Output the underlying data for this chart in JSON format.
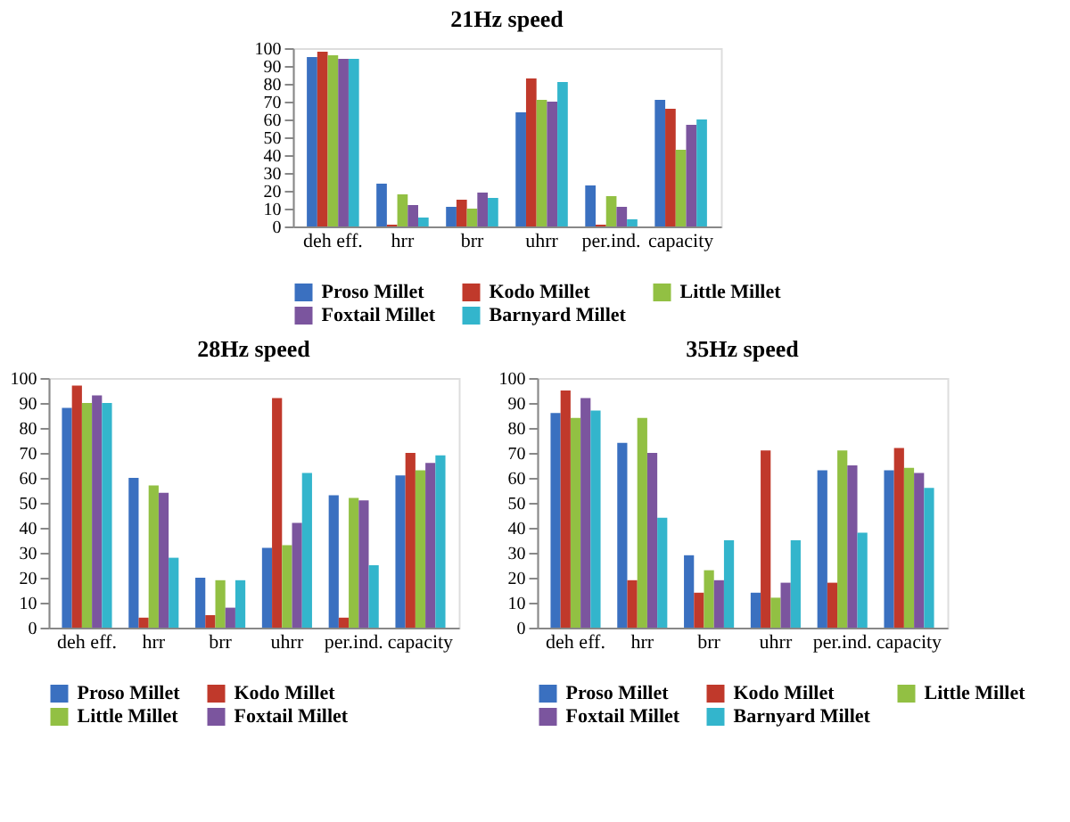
{
  "chart_data": [
    {
      "type": "bar",
      "title": "21Hz speed",
      "categories": [
        "deh eff.",
        "hrr",
        "brr",
        "uhrr",
        "per.ind.",
        "capacity"
      ],
      "ylim": [
        0,
        100
      ],
      "yticks": [
        0,
        10,
        20,
        30,
        40,
        50,
        60,
        70,
        80,
        90,
        100
      ],
      "grid": false,
      "legend": "bottom",
      "series": [
        {
          "name": "Proso Millet",
          "color": "#3a70c0",
          "values": [
            95,
            24,
            11,
            64,
            23,
            71
          ]
        },
        {
          "name": "Kodo Millet",
          "color": "#c0392b",
          "values": [
            98,
            1,
            15,
            83,
            1,
            66
          ]
        },
        {
          "name": "Little Millet",
          "color": "#92c043",
          "values": [
            96,
            18,
            10,
            71,
            17,
            43
          ]
        },
        {
          "name": "Foxtail Millet",
          "color": "#7b559e",
          "values": [
            94,
            12,
            19,
            70,
            11,
            57
          ]
        },
        {
          "name": "Barnyard Millet",
          "color": "#33b5cc",
          "values": [
            94,
            5,
            16,
            81,
            4,
            60
          ]
        }
      ]
    },
    {
      "type": "bar",
      "title": "28Hz speed",
      "categories": [
        "deh eff.",
        "hrr",
        "brr",
        "uhrr",
        "per.ind.",
        "capacity"
      ],
      "ylim": [
        0,
        100
      ],
      "yticks": [
        0,
        10,
        20,
        30,
        40,
        50,
        60,
        70,
        80,
        90,
        100
      ],
      "grid": false,
      "legend": "bottom",
      "series": [
        {
          "name": "Proso Millet",
          "color": "#3a70c0",
          "values": [
            88,
            60,
            20,
            32,
            53,
            61
          ]
        },
        {
          "name": "Kodo Millet",
          "color": "#c0392b",
          "values": [
            97,
            4,
            5,
            92,
            4,
            70
          ]
        },
        {
          "name": "Little Millet",
          "color": "#92c043",
          "values": [
            90,
            57,
            19,
            33,
            52,
            63
          ]
        },
        {
          "name": "Foxtail Millet",
          "color": "#7b559e",
          "values": [
            93,
            54,
            8,
            42,
            51,
            66
          ]
        },
        {
          "color": "#33b5cc",
          "values": [
            90,
            28,
            19,
            62,
            25,
            69
          ]
        }
      ]
    },
    {
      "type": "bar",
      "title": "35Hz speed",
      "categories": [
        "deh eff.",
        "hrr",
        "brr",
        "uhrr",
        "per.ind.",
        "capacity"
      ],
      "ylim": [
        0,
        100
      ],
      "yticks": [
        0,
        10,
        20,
        30,
        40,
        50,
        60,
        70,
        80,
        90,
        100
      ],
      "grid": false,
      "legend": "bottom",
      "series": [
        {
          "name": "Proso Millet",
          "color": "#3a70c0",
          "values": [
            86,
            74,
            29,
            14,
            63,
            63
          ]
        },
        {
          "name": "Kodo Millet",
          "color": "#c0392b",
          "values": [
            95,
            19,
            14,
            71,
            18,
            72
          ]
        },
        {
          "name": "Little Millet",
          "color": "#92c043",
          "values": [
            84,
            84,
            23,
            12,
            71,
            64
          ]
        },
        {
          "name": "Foxtail Millet",
          "color": "#7b559e",
          "values": [
            92,
            70,
            19,
            18,
            65,
            62
          ]
        },
        {
          "name": "Barnyard Millet",
          "color": "#33b5cc",
          "values": [
            87,
            44,
            35,
            35,
            38,
            56
          ]
        }
      ]
    }
  ]
}
